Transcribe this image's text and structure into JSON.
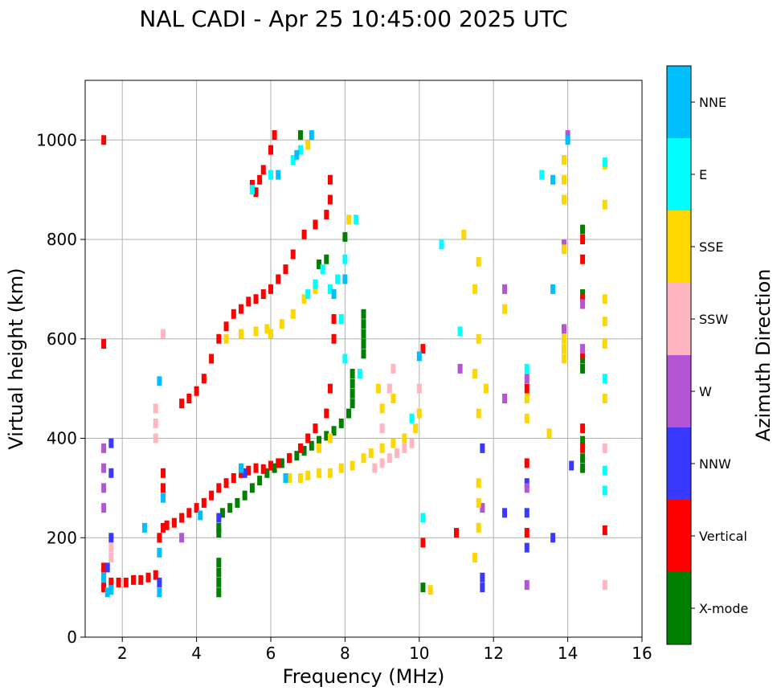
{
  "chart_data": {
    "type": "scatter",
    "title": "NAL CADI - Apr 25 10:45:00 2025 UTC",
    "xlabel": "Frequency (MHz)",
    "ylabel": "Virtual height (km)",
    "xlim": [
      1,
      16
    ],
    "ylim": [
      0,
      1120
    ],
    "xticks": [
      2,
      4,
      6,
      8,
      10,
      12,
      14,
      16
    ],
    "yticks": [
      0,
      200,
      400,
      600,
      800,
      1000
    ],
    "grid": true,
    "colorbar": {
      "title": "Azimuth Direction",
      "categories": [
        {
          "name": "X-mode",
          "color": "#008000"
        },
        {
          "name": "Vertical",
          "color": "#ff0000"
        },
        {
          "name": "NNW",
          "color": "#3a3aff"
        },
        {
          "name": "W",
          "color": "#b455d6"
        },
        {
          "name": "SSW",
          "color": "#ffb6c1"
        },
        {
          "name": "SSE",
          "color": "#ffd700"
        },
        {
          "name": "E",
          "color": "#00ffff"
        },
        {
          "name": "NNE",
          "color": "#00bfff"
        }
      ]
    },
    "series": [
      {
        "name": "X-mode",
        "points": [
          [
            4.6,
            90
          ],
          [
            4.6,
            110
          ],
          [
            4.6,
            130
          ],
          [
            4.6,
            150
          ],
          [
            4.6,
            210
          ],
          [
            4.6,
            220
          ],
          [
            4.7,
            250
          ],
          [
            4.9,
            260
          ],
          [
            5.1,
            270
          ],
          [
            5.3,
            285
          ],
          [
            5.5,
            300
          ],
          [
            5.7,
            315
          ],
          [
            5.9,
            330
          ],
          [
            6.1,
            340
          ],
          [
            6.3,
            350
          ],
          [
            6.5,
            360
          ],
          [
            6.7,
            365
          ],
          [
            6.9,
            375
          ],
          [
            7.1,
            385
          ],
          [
            7.3,
            395
          ],
          [
            7.5,
            405
          ],
          [
            7.7,
            415
          ],
          [
            7.9,
            430
          ],
          [
            8.1,
            450
          ],
          [
            8.2,
            470
          ],
          [
            8.2,
            490
          ],
          [
            8.2,
            510
          ],
          [
            8.2,
            530
          ],
          [
            8.5,
            570
          ],
          [
            8.5,
            590
          ],
          [
            8.5,
            610
          ],
          [
            8.5,
            630
          ],
          [
            8.5,
            650
          ],
          [
            7.3,
            750
          ],
          [
            7.5,
            760
          ],
          [
            8.0,
            805
          ],
          [
            6.8,
            1010
          ],
          [
            10.1,
            100
          ],
          [
            14.4,
            340
          ],
          [
            14.4,
            360
          ],
          [
            14.4,
            395
          ],
          [
            14.4,
            560
          ],
          [
            14.4,
            540
          ],
          [
            14.4,
            690
          ],
          [
            14.4,
            820
          ]
        ]
      },
      {
        "name": "Vertical",
        "points": [
          [
            1.5,
            100
          ],
          [
            1.5,
            120
          ],
          [
            1.5,
            140
          ],
          [
            1.7,
            110
          ],
          [
            1.9,
            110
          ],
          [
            2.1,
            110
          ],
          [
            2.3,
            115
          ],
          [
            2.5,
            115
          ],
          [
            2.7,
            120
          ],
          [
            2.9,
            125
          ],
          [
            3.0,
            200
          ],
          [
            3.1,
            220
          ],
          [
            3.2,
            225
          ],
          [
            3.4,
            230
          ],
          [
            3.6,
            240
          ],
          [
            3.8,
            250
          ],
          [
            4.0,
            260
          ],
          [
            4.2,
            270
          ],
          [
            4.4,
            285
          ],
          [
            4.6,
            300
          ],
          [
            4.8,
            310
          ],
          [
            5.0,
            320
          ],
          [
            5.2,
            330
          ],
          [
            5.4,
            335
          ],
          [
            5.6,
            340
          ],
          [
            5.8,
            338
          ],
          [
            6.0,
            345
          ],
          [
            6.2,
            350
          ],
          [
            6.5,
            360
          ],
          [
            6.8,
            380
          ],
          [
            7.0,
            400
          ],
          [
            7.2,
            420
          ],
          [
            7.5,
            450
          ],
          [
            7.6,
            500
          ],
          [
            7.7,
            600
          ],
          [
            7.7,
            640
          ],
          [
            3.1,
            330
          ],
          [
            3.1,
            300
          ],
          [
            3.6,
            470
          ],
          [
            3.8,
            480
          ],
          [
            4.0,
            495
          ],
          [
            4.2,
            520
          ],
          [
            4.4,
            560
          ],
          [
            4.6,
            600
          ],
          [
            4.8,
            625
          ],
          [
            5.0,
            650
          ],
          [
            5.2,
            660
          ],
          [
            5.4,
            675
          ],
          [
            5.6,
            680
          ],
          [
            5.8,
            690
          ],
          [
            6.0,
            700
          ],
          [
            6.2,
            720
          ],
          [
            6.4,
            740
          ],
          [
            6.6,
            770
          ],
          [
            6.9,
            810
          ],
          [
            7.2,
            830
          ],
          [
            7.5,
            850
          ],
          [
            7.6,
            880
          ],
          [
            7.6,
            920
          ],
          [
            5.5,
            910
          ],
          [
            5.6,
            895
          ],
          [
            5.7,
            920
          ],
          [
            5.8,
            940
          ],
          [
            6.0,
            980
          ],
          [
            6.1,
            1010
          ],
          [
            1.5,
            590
          ],
          [
            1.5,
            1000
          ],
          [
            10.1,
            580
          ],
          [
            10.1,
            190
          ],
          [
            11.0,
            210
          ],
          [
            12.9,
            210
          ],
          [
            12.9,
            350
          ],
          [
            12.9,
            500
          ],
          [
            14.4,
            380
          ],
          [
            14.4,
            420
          ],
          [
            14.4,
            570
          ],
          [
            14.4,
            680
          ],
          [
            14.4,
            760
          ],
          [
            14.4,
            800
          ],
          [
            15.0,
            215
          ]
        ]
      },
      {
        "name": "NNW",
        "points": [
          [
            1.6,
            140
          ],
          [
            1.7,
            390
          ],
          [
            1.7,
            330
          ],
          [
            1.7,
            200
          ],
          [
            3.0,
            110
          ],
          [
            4.6,
            240
          ],
          [
            5.3,
            330
          ],
          [
            12.3,
            250
          ],
          [
            12.9,
            180
          ],
          [
            12.9,
            250
          ],
          [
            12.9,
            310
          ],
          [
            13.6,
            200
          ],
          [
            14.1,
            345
          ],
          [
            11.7,
            100
          ],
          [
            11.7,
            120
          ],
          [
            11.7,
            380
          ]
        ]
      },
      {
        "name": "W",
        "points": [
          [
            1.5,
            260
          ],
          [
            1.5,
            300
          ],
          [
            1.5,
            340
          ],
          [
            1.5,
            380
          ],
          [
            3.6,
            200
          ],
          [
            12.3,
            480
          ],
          [
            12.3,
            700
          ],
          [
            12.9,
            105
          ],
          [
            12.9,
            300
          ],
          [
            12.9,
            520
          ],
          [
            13.9,
            620
          ],
          [
            13.9,
            790
          ],
          [
            14.4,
            670
          ],
          [
            14.4,
            580
          ],
          [
            11.7,
            260
          ],
          [
            11.1,
            540
          ],
          [
            14.0,
            1010
          ]
        ]
      },
      {
        "name": "SSW",
        "points": [
          [
            1.7,
            160
          ],
          [
            1.7,
            180
          ],
          [
            2.9,
            400
          ],
          [
            2.9,
            430
          ],
          [
            2.9,
            460
          ],
          [
            3.1,
            610
          ],
          [
            8.8,
            340
          ],
          [
            9.0,
            350
          ],
          [
            9.2,
            360
          ],
          [
            9.4,
            370
          ],
          [
            9.6,
            380
          ],
          [
            9.8,
            390
          ],
          [
            9.0,
            420
          ],
          [
            9.2,
            500
          ],
          [
            9.3,
            540
          ],
          [
            10.0,
            500
          ],
          [
            15.0,
            380
          ],
          [
            15.0,
            105
          ]
        ]
      },
      {
        "name": "SSE",
        "points": [
          [
            6.5,
            320
          ],
          [
            6.8,
            320
          ],
          [
            7.0,
            325
          ],
          [
            7.3,
            330
          ],
          [
            7.6,
            330
          ],
          [
            7.9,
            340
          ],
          [
            8.2,
            345
          ],
          [
            8.5,
            360
          ],
          [
            8.7,
            370
          ],
          [
            9.0,
            380
          ],
          [
            9.3,
            390
          ],
          [
            9.6,
            400
          ],
          [
            9.9,
            420
          ],
          [
            10.0,
            450
          ],
          [
            9.0,
            460
          ],
          [
            9.3,
            480
          ],
          [
            8.9,
            500
          ],
          [
            7.3,
            380
          ],
          [
            7.6,
            400
          ],
          [
            6.0,
            610
          ],
          [
            6.3,
            630
          ],
          [
            6.6,
            650
          ],
          [
            6.9,
            680
          ],
          [
            7.2,
            700
          ],
          [
            4.8,
            600
          ],
          [
            5.2,
            610
          ],
          [
            5.6,
            615
          ],
          [
            5.9,
            620
          ],
          [
            7.0,
            990
          ],
          [
            8.1,
            840
          ],
          [
            13.9,
            560
          ],
          [
            13.9,
            580
          ],
          [
            13.9,
            600
          ],
          [
            13.9,
            780
          ],
          [
            13.9,
            880
          ],
          [
            13.9,
            920
          ],
          [
            13.9,
            960
          ],
          [
            15.0,
            480
          ],
          [
            15.0,
            590
          ],
          [
            15.0,
            635
          ],
          [
            15.0,
            680
          ],
          [
            15.0,
            870
          ],
          [
            15.0,
            950
          ],
          [
            11.6,
            755
          ],
          [
            11.6,
            600
          ],
          [
            11.6,
            450
          ],
          [
            11.6,
            310
          ],
          [
            11.6,
            270
          ],
          [
            11.6,
            220
          ],
          [
            11.5,
            160
          ],
          [
            11.5,
            530
          ],
          [
            11.5,
            700
          ],
          [
            11.8,
            500
          ],
          [
            11.2,
            810
          ],
          [
            12.3,
            660
          ],
          [
            12.9,
            440
          ],
          [
            12.9,
            480
          ],
          [
            13.5,
            410
          ],
          [
            10.3,
            95
          ]
        ]
      },
      {
        "name": "E",
        "points": [
          [
            6.4,
            320
          ],
          [
            7.0,
            690
          ],
          [
            7.2,
            710
          ],
          [
            7.4,
            740
          ],
          [
            7.6,
            700
          ],
          [
            7.8,
            720
          ],
          [
            8.0,
            760
          ],
          [
            8.3,
            840
          ],
          [
            7.9,
            640
          ],
          [
            8.0,
            560
          ],
          [
            8.4,
            530
          ],
          [
            9.8,
            440
          ],
          [
            6.6,
            960
          ],
          [
            6.8,
            980
          ],
          [
            5.5,
            900
          ],
          [
            6.0,
            930
          ],
          [
            10.1,
            240
          ],
          [
            13.3,
            930
          ],
          [
            15.0,
            520
          ],
          [
            15.0,
            295
          ],
          [
            15.0,
            955
          ],
          [
            15.0,
            335
          ],
          [
            12.9,
            540
          ],
          [
            11.1,
            615
          ],
          [
            10.6,
            790
          ]
        ]
      },
      {
        "name": "NNE",
        "points": [
          [
            1.6,
            90
          ],
          [
            1.7,
            95
          ],
          [
            1.5,
            120
          ],
          [
            2.6,
            220
          ],
          [
            3.0,
            90
          ],
          [
            3.0,
            170
          ],
          [
            3.0,
            515
          ],
          [
            3.1,
            280
          ],
          [
            4.1,
            245
          ],
          [
            5.2,
            340
          ],
          [
            6.4,
            320
          ],
          [
            7.7,
            690
          ],
          [
            8.0,
            720
          ],
          [
            10.0,
            565
          ],
          [
            13.6,
            700
          ],
          [
            13.6,
            920
          ],
          [
            14.0,
            1000
          ],
          [
            6.2,
            930
          ],
          [
            6.7,
            970
          ],
          [
            7.1,
            1010
          ]
        ]
      }
    ]
  }
}
